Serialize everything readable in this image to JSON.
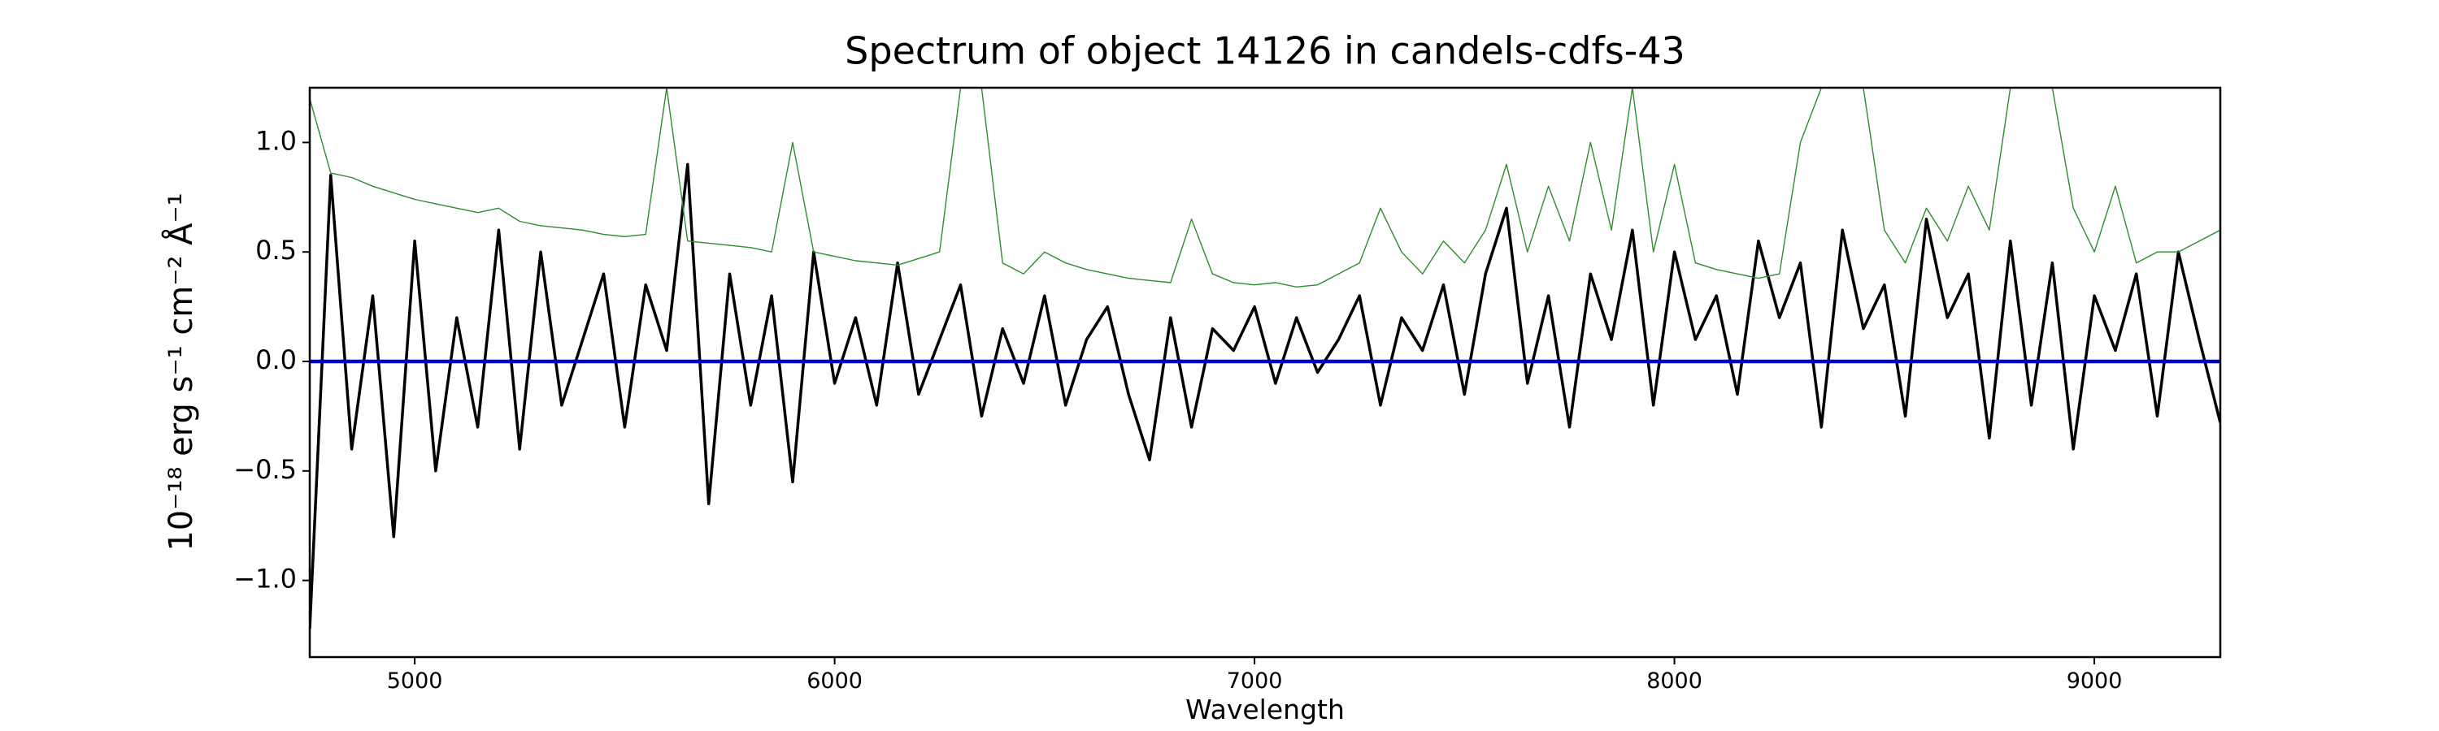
{
  "chart_data": {
    "type": "line",
    "title": "Spectrum of object 14126 in candels-cdfs-43",
    "x_label": "Wavelength",
    "y_label": "10⁻¹⁸ erg s⁻¹ cm⁻² Å⁻¹",
    "x": [
      4750,
      4800,
      4850,
      4900,
      4950,
      5000,
      5050,
      5100,
      5150,
      5200,
      5250,
      5300,
      5350,
      5400,
      5450,
      5500,
      5550,
      5600,
      5650,
      5700,
      5750,
      5800,
      5850,
      5900,
      5950,
      6000,
      6050,
      6100,
      6150,
      6200,
      6250,
      6300,
      6350,
      6400,
      6450,
      6500,
      6550,
      6600,
      6650,
      6700,
      6750,
      6800,
      6850,
      6900,
      6950,
      7000,
      7050,
      7100,
      7150,
      7200,
      7250,
      7300,
      7350,
      7400,
      7450,
      7500,
      7550,
      7600,
      7650,
      7700,
      7750,
      7800,
      7850,
      7900,
      7950,
      8000,
      8050,
      8100,
      8150,
      8200,
      8250,
      8300,
      8350,
      8400,
      8450,
      8500,
      8550,
      8600,
      8650,
      8700,
      8750,
      8800,
      8850,
      8900,
      8950,
      9000,
      9050,
      9100,
      9150,
      9200,
      9250,
      9300
    ],
    "series": [
      {
        "color": "#000000",
        "values": [
          -1.22,
          0.85,
          -0.4,
          0.3,
          -0.8,
          0.55,
          -0.5,
          0.2,
          -0.3,
          0.6,
          -0.4,
          0.5,
          -0.2,
          0.1,
          0.4,
          -0.3,
          0.35,
          0.05,
          0.9,
          -0.65,
          0.4,
          -0.2,
          0.3,
          -0.55,
          0.5,
          -0.1,
          0.2,
          -0.2,
          0.45,
          -0.15,
          0.1,
          0.35,
          -0.25,
          0.15,
          -0.1,
          0.3,
          -0.2,
          0.1,
          0.25,
          -0.15,
          -0.45,
          0.2,
          -0.3,
          0.15,
          0.05,
          0.25,
          -0.1,
          0.2,
          -0.05,
          0.1,
          0.3,
          -0.2,
          0.2,
          0.05,
          0.35,
          -0.15,
          0.4,
          0.7,
          -0.1,
          0.3,
          -0.3,
          0.4,
          0.1,
          0.6,
          -0.2,
          0.5,
          0.1,
          0.3,
          -0.15,
          0.55,
          0.2,
          0.45,
          -0.3,
          0.6,
          0.15,
          0.35,
          -0.25,
          0.65,
          0.2,
          0.4,
          -0.35,
          0.55,
          -0.2,
          0.45,
          -0.4,
          0.3,
          0.05,
          0.4,
          -0.25,
          0.5,
          0.1,
          -0.28
        ]
      },
      {
        "color": "#2e8b2e",
        "values": [
          1.2,
          0.86,
          0.84,
          0.8,
          0.77,
          0.74,
          0.72,
          0.7,
          0.68,
          0.7,
          0.64,
          0.62,
          0.61,
          0.6,
          0.58,
          0.57,
          0.58,
          1.25,
          0.55,
          0.54,
          0.53,
          0.52,
          0.5,
          1.0,
          0.5,
          0.48,
          0.46,
          0.45,
          0.44,
          0.47,
          0.5,
          1.25,
          1.25,
          0.45,
          0.4,
          0.5,
          0.45,
          0.42,
          0.4,
          0.38,
          0.37,
          0.36,
          0.65,
          0.4,
          0.36,
          0.35,
          0.36,
          0.34,
          0.35,
          0.4,
          0.45,
          0.7,
          0.5,
          0.4,
          0.55,
          0.45,
          0.6,
          0.9,
          0.5,
          0.8,
          0.55,
          1.0,
          0.6,
          1.25,
          0.5,
          0.9,
          0.45,
          0.42,
          0.4,
          0.38,
          0.4,
          1.0,
          1.25,
          1.25,
          1.25,
          0.6,
          0.45,
          0.7,
          0.55,
          0.8,
          0.6,
          1.25,
          1.25,
          1.25,
          0.7,
          0.5,
          0.8,
          0.45,
          0.5,
          0.5,
          0.55,
          0.6
        ]
      },
      {
        "color": "#0000cc",
        "x": [
          4750,
          9300
        ],
        "values": [
          0,
          0
        ]
      }
    ],
    "xlim": [
      4750,
      9300
    ],
    "xticks": [
      5000,
      6000,
      7000,
      8000,
      9000
    ],
    "ylim": [
      -1.35,
      1.25
    ],
    "yticks": [
      {
        "value": -1.0,
        "label": "−1.0"
      },
      {
        "value": -0.5,
        "label": "−0.5"
      },
      {
        "value": 0.0,
        "label": "0.0"
      },
      {
        "value": 0.5,
        "label": "0.5"
      },
      {
        "value": 1.0,
        "label": "1.0"
      }
    ]
  }
}
